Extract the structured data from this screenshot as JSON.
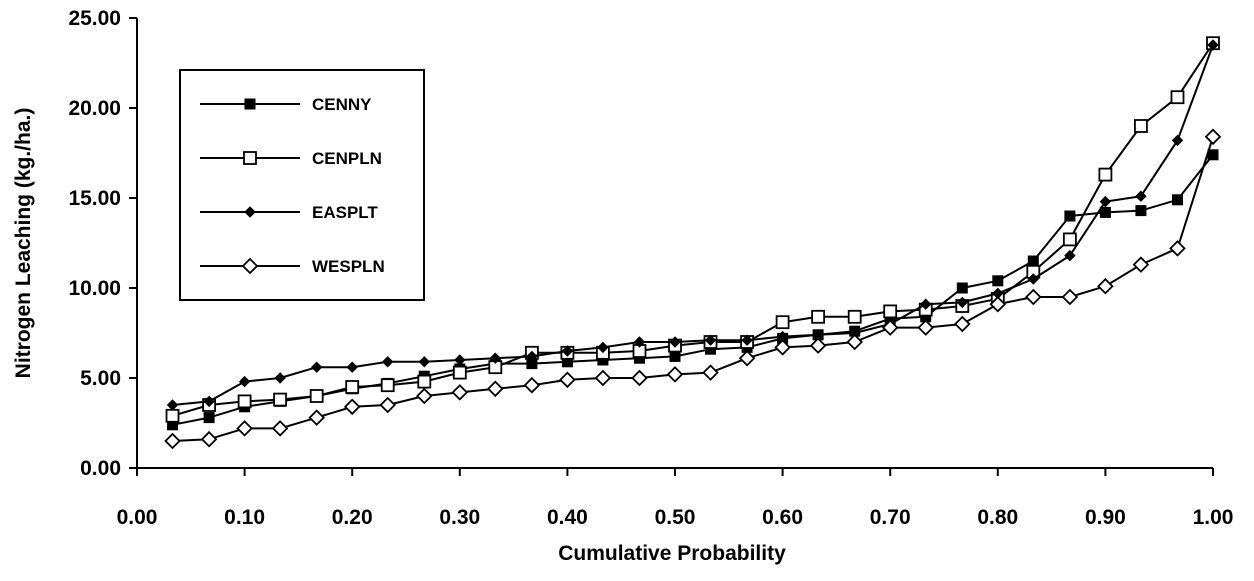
{
  "chart_data": {
    "type": "line",
    "title": "",
    "xlabel": "Cumulative Probability",
    "ylabel": "Nitrogen Leaching (kg./ha.)",
    "xlim": [
      0,
      1
    ],
    "ylim": [
      0,
      25
    ],
    "x_ticks": [
      "0.00",
      "0.10",
      "0.20",
      "0.30",
      "0.40",
      "0.50",
      "0.60",
      "0.70",
      "0.80",
      "0.90",
      "1.00"
    ],
    "y_ticks": [
      "0.00",
      "5.00",
      "10.00",
      "15.00",
      "20.00",
      "25.00"
    ],
    "grid": false,
    "legend_position": "top-left",
    "x": [
      0.033,
      0.067,
      0.1,
      0.133,
      0.167,
      0.2,
      0.233,
      0.267,
      0.3,
      0.333,
      0.367,
      0.4,
      0.433,
      0.467,
      0.5,
      0.533,
      0.567,
      0.6,
      0.633,
      0.667,
      0.7,
      0.733,
      0.767,
      0.8,
      0.833,
      0.867,
      0.9,
      0.933,
      0.967,
      1.0
    ],
    "series": [
      {
        "name": "CENNY",
        "marker": "filled-square",
        "values": [
          2.4,
          2.8,
          3.4,
          3.7,
          4.0,
          4.4,
          4.7,
          5.1,
          5.5,
          5.8,
          5.8,
          5.9,
          6.0,
          6.1,
          6.2,
          6.6,
          6.7,
          7.2,
          7.4,
          7.6,
          8.3,
          8.4,
          10.0,
          10.4,
          11.5,
          14.0,
          14.2,
          14.3,
          14.9,
          17.4
        ]
      },
      {
        "name": "CENPLN",
        "marker": "open-square",
        "values": [
          2.9,
          3.5,
          3.7,
          3.8,
          4.0,
          4.5,
          4.6,
          4.8,
          5.3,
          5.6,
          6.4,
          6.4,
          6.4,
          6.5,
          6.8,
          7.0,
          7.0,
          8.1,
          8.4,
          8.4,
          8.7,
          8.8,
          9.0,
          9.4,
          10.9,
          12.7,
          16.3,
          19.0,
          20.6,
          23.6
        ]
      },
      {
        "name": "EASPLT",
        "marker": "filled-diamond",
        "values": [
          3.5,
          3.7,
          4.8,
          5.0,
          5.6,
          5.6,
          5.9,
          5.9,
          6.0,
          6.1,
          6.2,
          6.5,
          6.7,
          7.0,
          7.0,
          7.1,
          7.1,
          7.3,
          7.4,
          7.5,
          8.0,
          9.1,
          9.2,
          9.7,
          10.5,
          11.8,
          14.8,
          15.1,
          18.2,
          23.5
        ]
      },
      {
        "name": "WESPLN",
        "marker": "open-diamond",
        "values": [
          1.5,
          1.6,
          2.2,
          2.2,
          2.8,
          3.4,
          3.5,
          4.0,
          4.2,
          4.4,
          4.6,
          4.9,
          5.0,
          5.0,
          5.2,
          5.3,
          6.1,
          6.7,
          6.8,
          7.0,
          7.8,
          7.8,
          8.0,
          9.1,
          9.5,
          9.5,
          10.1,
          11.3,
          12.2,
          18.4
        ]
      }
    ]
  }
}
